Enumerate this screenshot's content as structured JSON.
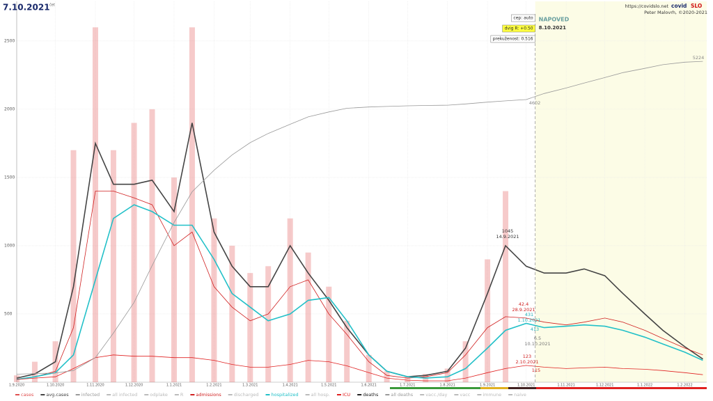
{
  "header": {
    "title": "7.10.2021",
    "weekday": "čet",
    "url": "https://covidslo.net",
    "brand": "covid",
    "brand_suffix": "SLO",
    "author": "Peter Malovrh, ©2020-2021"
  },
  "chart_data": {
    "type": "line",
    "x": [
      "1.9.2020",
      "15.9.2020",
      "1.10.2020",
      "15.10.2020",
      "1.11.2020",
      "15.11.2020",
      "1.12.2020",
      "15.12.2020",
      "1.1.2021",
      "15.1.2021",
      "1.2.2021",
      "15.2.2021",
      "1.3.2021",
      "15.3.2021",
      "1.4.2021",
      "15.4.2021",
      "1.5.2021",
      "15.5.2021",
      "1.6.2021",
      "15.6.2021",
      "1.7.2021",
      "15.7.2021",
      "1.8.2021",
      "15.8.2021",
      "1.9.2021",
      "15.9.2021",
      "1.10.2021",
      "15.10.2021",
      "1.11.2021",
      "15.11.2021",
      "1.12.2021",
      "15.12.2021",
      "1.1.2022",
      "15.1.2022",
      "1.2.2022",
      "15.2.2022"
    ],
    "xlim": [
      "1.9.2020",
      "18.2.2022"
    ],
    "xticks": [
      "1.9.2020",
      "1.10.2020",
      "1.11.2020",
      "1.12.2020",
      "1.1.2021",
      "1.2.2021",
      "1.3.2021",
      "1.4.2021",
      "1.5.2021",
      "1.6.2021",
      "1.7.2021",
      "1.8.2021",
      "1.9.2021",
      "1.10.2021",
      "1.11.2021",
      "1.12.2021",
      "1.1.2022",
      "1.2.2022"
    ],
    "ylim": [
      0,
      2790
    ],
    "yticks": [
      500,
      1000,
      1500,
      2000,
      2500
    ],
    "y2lim": [
      0,
      6200
    ],
    "grid": true,
    "series": [
      {
        "name": "cases",
        "kind": "bar",
        "color": "#e05050",
        "values": [
          50,
          150,
          300,
          1700,
          2600,
          1700,
          1900,
          2000,
          1500,
          2600,
          1200,
          1000,
          800,
          850,
          1200,
          950,
          700,
          450,
          200,
          80,
          40,
          60,
          100,
          300,
          900,
          1400,
          null,
          null,
          null,
          null,
          null,
          null,
          null,
          null,
          null,
          null
        ]
      },
      {
        "name": "avg.cases",
        "color": "#444444",
        "values": [
          30,
          60,
          150,
          700,
          1750,
          1450,
          1450,
          1480,
          1250,
          1900,
          1100,
          850,
          700,
          700,
          1000,
          800,
          600,
          400,
          200,
          80,
          40,
          50,
          80,
          250,
          650,
          1000,
          850,
          800,
          800,
          830,
          780,
          650,
          500,
          380,
          260,
          170
        ]
      },
      {
        "name": "admissions",
        "color": "#d02020",
        "values": [
          20,
          40,
          80,
          400,
          1400,
          1400,
          1350,
          1300,
          1000,
          1100,
          700,
          550,
          450,
          500,
          700,
          750,
          500,
          350,
          150,
          50,
          30,
          40,
          70,
          200,
          400,
          480,
          470,
          440,
          420,
          440,
          470,
          440,
          380,
          320,
          250,
          200
        ]
      },
      {
        "name": "hospitalized",
        "color": "#22c0c8",
        "values": [
          20,
          40,
          70,
          200,
          750,
          1200,
          1300,
          1250,
          1150,
          1150,
          900,
          650,
          550,
          450,
          500,
          600,
          620,
          450,
          200,
          80,
          40,
          30,
          40,
          100,
          250,
          380,
          431,
          400,
          410,
          420,
          410,
          380,
          330,
          280,
          220,
          160
        ]
      },
      {
        "name": "ICU",
        "color": "#e02020",
        "values": [
          20,
          30,
          40,
          100,
          180,
          200,
          190,
          190,
          180,
          180,
          160,
          130,
          110,
          110,
          130,
          160,
          150,
          120,
          70,
          30,
          15,
          10,
          10,
          30,
          70,
          100,
          123,
          110,
          100,
          105,
          110,
          100,
          95,
          85,
          70,
          55
        ]
      },
      {
        "name": "all deaths",
        "color": "#999999",
        "axis": "y2",
        "values": [
          130,
          140,
          150,
          190,
          400,
          800,
          1300,
          1900,
          2600,
          3100,
          3450,
          3700,
          3900,
          4050,
          4200,
          4320,
          4400,
          4460,
          4480,
          4490,
          4500,
          4505,
          4510,
          4530,
          4560,
          4580,
          4602,
          4700,
          4790,
          4870,
          4960,
          5040,
          5110,
          5170,
          5210,
          5224
        ]
      }
    ],
    "other_legend": [
      {
        "name": "infected",
        "color": "#999999"
      },
      {
        "name": "all infected",
        "color": "#bbbbbb"
      },
      {
        "name": "odplake",
        "color": "#bbbbbb"
      },
      {
        "name": "R",
        "color": "#bbbbbb"
      },
      {
        "name": "discharged",
        "color": "#bbbbbb"
      },
      {
        "name": "all hosp.",
        "color": "#bbbbbb"
      },
      {
        "name": "deaths",
        "color": "#222222"
      },
      {
        "name": "vacc./day",
        "color": "#bbbbbb"
      },
      {
        "name": "vacc",
        "color": "#bbbbbb"
      },
      {
        "name": "immune",
        "color": "#bbbbbb"
      },
      {
        "name": "naive",
        "color": "#bbbbbb"
      }
    ],
    "annotations": [
      {
        "value": 1045,
        "date": "14.9.2021",
        "color": "#333333"
      },
      {
        "value": 42.4,
        "date": "28.9.2021",
        "color": "#d02020"
      },
      {
        "value": 431,
        "date": "1.10.2021",
        "color": "#22b0b8"
      },
      {
        "value": 413,
        "color": "#22b0b8"
      },
      {
        "value": 6.5,
        "date": "10.10.2021",
        "color": "#777777"
      },
      {
        "value": 123,
        "date": "2.10.2021",
        "color": "#d02020"
      },
      {
        "value": 115,
        "color": "#d02020"
      },
      {
        "value": 4602,
        "color": "#888888"
      },
      {
        "value": 5224,
        "color": "#888888"
      }
    ],
    "forecast": {
      "label": "NAPOVED",
      "date": "8.10.2021",
      "settings": [
        "cep: auto",
        "dvig R: +0.50",
        "prekuženost: 0.516"
      ],
      "color": "#fcfce6"
    }
  }
}
